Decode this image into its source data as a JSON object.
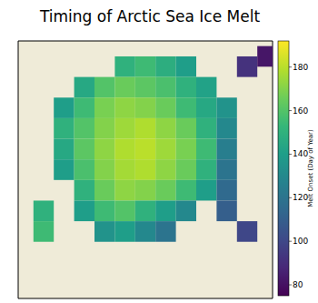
{
  "chart_data": {
    "type": "map",
    "title": "Timing of Arctic Sea Ice Melt",
    "xlim": [
      -50,
      50
    ],
    "ylim": [
      -50,
      50
    ],
    "tick_labels": false,
    "cells": {
      "cell_size": 8,
      "x": [
        40,
        48,
        -8,
        0,
        8,
        16,
        -24,
        -16,
        -8,
        0,
        8,
        16,
        24,
        -32,
        -24,
        -16,
        -8,
        0,
        8,
        16,
        24,
        32,
        -32,
        -24,
        -16,
        -8,
        0,
        8,
        16,
        24,
        32,
        -32,
        -24,
        -16,
        -8,
        0,
        8,
        16,
        24,
        32,
        -32,
        -24,
        -16,
        -8,
        0,
        8,
        16,
        24,
        32,
        -24,
        -16,
        -8,
        0,
        8,
        16,
        24,
        32,
        -40,
        -24,
        -16,
        -8,
        0,
        8,
        16,
        32,
        -40,
        -16,
        -8,
        0,
        8,
        40
      ],
      "y": [
        40,
        44,
        40,
        40,
        40,
        40,
        32,
        32,
        32,
        32,
        32,
        32,
        32,
        24,
        24,
        24,
        24,
        24,
        24,
        24,
        24,
        24,
        16,
        16,
        16,
        16,
        16,
        16,
        16,
        16,
        16,
        8,
        8,
        8,
        8,
        8,
        8,
        8,
        8,
        8,
        0,
        0,
        0,
        0,
        0,
        0,
        0,
        0,
        0,
        -8,
        -8,
        -8,
        -8,
        -8,
        -8,
        -8,
        -8,
        -16,
        -16,
        -16,
        -16,
        -16,
        -16,
        -16,
        -16,
        -24,
        -24,
        -24,
        -24,
        -24,
        -24
      ],
      "values": [
        92,
        82,
        150,
        155,
        148,
        140,
        145,
        160,
        165,
        162,
        158,
        150,
        142,
        140,
        155,
        168,
        172,
        170,
        165,
        155,
        145,
        135,
        150,
        160,
        170,
        175,
        178,
        172,
        165,
        150,
        130,
        145,
        162,
        172,
        178,
        180,
        175,
        168,
        155,
        125,
        140,
        158,
        170,
        176,
        178,
        172,
        165,
        150,
        120,
        150,
        165,
        172,
        170,
        165,
        155,
        140,
        115,
        150,
        140,
        155,
        160,
        150,
        140,
        130,
        110,
        155,
        135,
        140,
        130,
        120,
        100
      ]
    },
    "colorbar": {
      "label": "Melt Onset (Day of Year)",
      "range": [
        75,
        192
      ],
      "ticks": [
        80,
        100,
        120,
        140,
        160,
        180
      ]
    }
  }
}
